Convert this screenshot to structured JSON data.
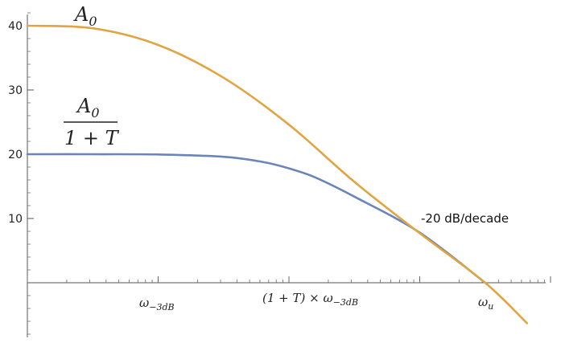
{
  "chart_data": {
    "type": "line",
    "title": "",
    "xlabel": "",
    "ylabel": "",
    "x_scale": "log",
    "x_unit_exponent_range": [
      0,
      4
    ],
    "ylim": [
      -8,
      42
    ],
    "y_ticks": [
      10,
      20,
      30,
      40
    ],
    "x_tick_labels": [
      {
        "pos": 1,
        "base": "ω",
        "sub": "−3dB",
        "prefix": ""
      },
      {
        "pos": 2,
        "base": "ω",
        "sub": "−3dB",
        "prefix": "(1 + T) × "
      },
      {
        "pos": 3.5,
        "base": "ω",
        "sub": "u",
        "prefix": ""
      }
    ],
    "series": [
      {
        "label_num": "A",
        "label_num_sub": "0",
        "label_den": "1 + T",
        "color": "#6A85BA",
        "x": [
          0,
          0.5,
          1,
          1.5,
          1.8,
          2,
          2.2,
          2.5,
          3,
          3.5
        ],
        "y": [
          20,
          20,
          19.96,
          19.6,
          18.8,
          17.8,
          16.4,
          13.4,
          7.8,
          0
        ]
      },
      {
        "label": "A",
        "label_sub": "0",
        "color": "#E0A540",
        "x": [
          0,
          0.5,
          1,
          1.5,
          2,
          2.5,
          3,
          3.5,
          3.82
        ],
        "y": [
          40,
          39.6,
          37.0,
          31.9,
          24.6,
          15.7,
          7.7,
          0,
          -6.3
        ]
      }
    ],
    "annotations": [
      {
        "text": "-20 dB/decade"
      }
    ],
    "grid": false,
    "legend": "none"
  }
}
